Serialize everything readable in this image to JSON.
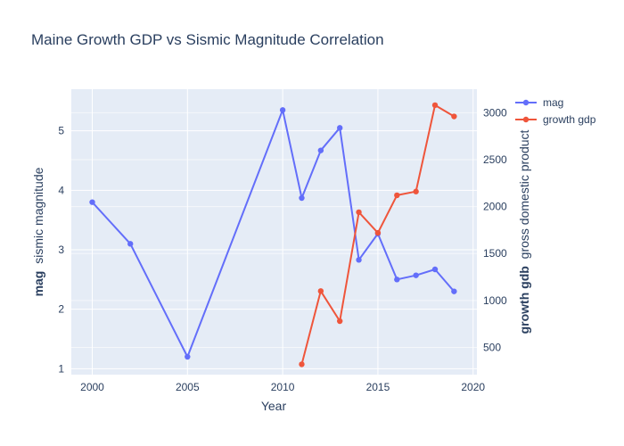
{
  "chart_data": {
    "type": "line",
    "title": "Maine Growth GDP vs Sismic Magnitude Correlation",
    "xlabel": "Year",
    "ylabel": {
      "bold": "mag",
      "rest": "sismic magnitude"
    },
    "y2label": {
      "bold": "growth gdb",
      "rest": "gross domestic product"
    },
    "xlim": [
      1998.9,
      2020.2
    ],
    "ylim": [
      0.9,
      5.7
    ],
    "y2lim": [
      210,
      3250
    ],
    "x_ticks": [
      2000,
      2005,
      2010,
      2015,
      2020
    ],
    "y_ticks": [
      1,
      2,
      3,
      4,
      5
    ],
    "y2_ticks": [
      500,
      1000,
      1500,
      2000,
      2500,
      3000
    ],
    "grid": true,
    "legend_position": "top-right",
    "series": [
      {
        "name": "mag",
        "axis": "y",
        "color": "#636efa",
        "x": [
          2000,
          2002,
          2005,
          2010,
          2011,
          2012,
          2013,
          2014,
          2015,
          2016,
          2017,
          2018,
          2019
        ],
        "y": [
          3.8,
          3.1,
          1.2,
          5.35,
          3.87,
          4.67,
          5.05,
          2.83,
          3.27,
          2.5,
          2.57,
          2.67,
          2.3
        ]
      },
      {
        "name": "growth gdp",
        "axis": "y2",
        "color": "#ef553b",
        "x": [
          2011,
          2012,
          2013,
          2014,
          2015,
          2016,
          2017,
          2018,
          2019
        ],
        "y": [
          320,
          1100,
          780,
          1940,
          1720,
          2120,
          2160,
          3080,
          2960
        ]
      }
    ]
  }
}
